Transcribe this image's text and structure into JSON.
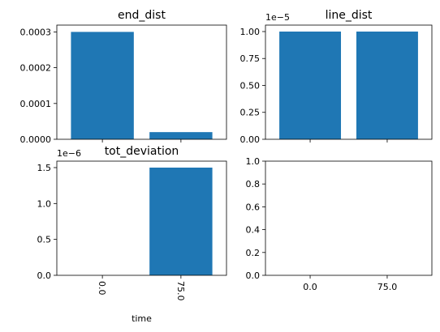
{
  "chart_data": [
    {
      "type": "bar",
      "title": "end_dist",
      "categories": [
        null,
        null
      ],
      "values": [
        0.0003,
        2e-05
      ],
      "color": "#1f77b4",
      "ylim": [
        0,
        0.000319
      ],
      "yticks": [
        {
          "value": 0,
          "label": "0.0000"
        },
        {
          "value": 0.0001,
          "label": "0.0001"
        },
        {
          "value": 0.0002,
          "label": "0.0002"
        },
        {
          "value": 0.0003,
          "label": "0.0003"
        }
      ]
    },
    {
      "type": "bar",
      "title": "line_dist",
      "categories": [
        null,
        null
      ],
      "values": [
        1e-05,
        1e-05
      ],
      "color": "#1f77b4",
      "ylim": [
        0,
        1.06e-05
      ],
      "offset_label": "1e−5",
      "yticks": [
        {
          "value": 0,
          "label": "0.00"
        },
        {
          "value": 2.5e-06,
          "label": "0.25"
        },
        {
          "value": 5e-06,
          "label": "0.50"
        },
        {
          "value": 7.5e-06,
          "label": "0.75"
        },
        {
          "value": 1e-05,
          "label": "1.00"
        }
      ]
    },
    {
      "type": "bar",
      "title": "tot_deviation",
      "categories": [
        "0.0",
        "75.0"
      ],
      "values": [
        0,
        1.5e-06
      ],
      "color": "#1f77b4",
      "ylim": [
        0,
        1.59e-06
      ],
      "offset_label": "1e−6",
      "xlabel": "time",
      "rotated_xticks": true,
      "yticks": [
        {
          "value": 0,
          "label": "0.0"
        },
        {
          "value": 5e-07,
          "label": "0.5"
        },
        {
          "value": 1e-06,
          "label": "1.0"
        },
        {
          "value": 1.5e-06,
          "label": "1.5"
        }
      ]
    },
    {
      "type": "bar",
      "categories": [
        "0.0",
        "75.0"
      ],
      "values": [
        null,
        null
      ],
      "color": "#1f77b4",
      "ylim": [
        0,
        1
      ],
      "yticks": [
        {
          "value": 0,
          "label": "0.0"
        },
        0.2,
        0.4,
        0.6,
        0.8,
        {
          "value": 1,
          "label": "1.0"
        }
      ]
    }
  ]
}
